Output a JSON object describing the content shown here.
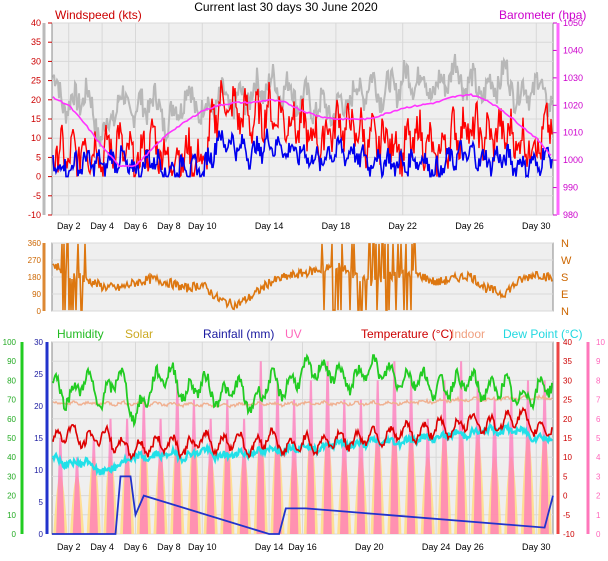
{
  "title": "Current last 30 days 30 June 2020",
  "colors": {
    "plot_bg": "#efefef",
    "grid": "#d8d8d8",
    "wind_avg": "#0000ee",
    "wind_gust": "#ff0000",
    "wind_speed_gray": "#b8b8b8",
    "barometer": "#ff33ff",
    "direction": "#dd7710",
    "humidity": "#22cc22",
    "solar": "#ffdd88",
    "rainfall": "#2233cc",
    "uv": "#ff77bb",
    "temperature": "#dd0000",
    "indoor": "#f0b090",
    "dew_point": "#22e0e8"
  },
  "chart_data": [
    {
      "type": "line",
      "panel": "wind-barometer",
      "labels": {
        "left": "Windspeed (kts)",
        "right": "Barometer (hpa)"
      },
      "x_ticks": [
        "Day 2",
        "Day 4",
        "Day 6",
        "Day 8",
        "Day 10",
        "Day 14",
        "Day 18",
        "Day 22",
        "Day 26",
        "Day 30"
      ],
      "x_tick_days": [
        2,
        4,
        6,
        8,
        10,
        14,
        18,
        22,
        26,
        30
      ],
      "y_left_ticks": [
        -10,
        -5,
        0,
        5,
        10,
        15,
        20,
        25,
        30,
        35,
        40
      ],
      "y_left_range": [
        -10,
        40
      ],
      "y_right_ticks": [
        980,
        990,
        1000,
        1010,
        1020,
        1030,
        1040,
        1050
      ],
      "y_right_range": [
        980,
        1050
      ],
      "x_range_days": [
        1,
        31
      ],
      "series": [
        {
          "key": "barometer",
          "axis": "right",
          "x": [
            1,
            2,
            3,
            4,
            5,
            6,
            7,
            8,
            9,
            10,
            11,
            12,
            13,
            14,
            15,
            16,
            17,
            18,
            19,
            20,
            21,
            22,
            23,
            24,
            25,
            26,
            27,
            28,
            29,
            30,
            31
          ],
          "values": [
            1023,
            1020,
            1013,
            1005,
            998,
            998,
            1004,
            1010,
            1014,
            1018,
            1020,
            1021,
            1021,
            1022,
            1021,
            1018,
            1016,
            1015,
            1015,
            1015,
            1017,
            1019,
            1020,
            1021,
            1023,
            1024,
            1022,
            1018,
            1013,
            1008,
            1001
          ]
        },
        {
          "key": "wind_speed_gray",
          "axis": "left",
          "x": [
            1,
            2,
            3,
            4,
            5,
            6,
            7,
            8,
            9,
            10,
            11,
            12,
            13,
            14,
            15,
            16,
            17,
            18,
            19,
            20,
            21,
            22,
            23,
            24,
            25,
            26,
            27,
            28,
            29,
            30,
            31
          ],
          "values": [
            25,
            18,
            22,
            10,
            20,
            17,
            20,
            14,
            22,
            17,
            20,
            19,
            22,
            24,
            23,
            20,
            18,
            17,
            21,
            24,
            22,
            25,
            26,
            22,
            28,
            24,
            22,
            27,
            21,
            24,
            19
          ]
        },
        {
          "key": "wind_gust",
          "axis": "left",
          "x": [
            1,
            2,
            3,
            4,
            5,
            6,
            7,
            8,
            9,
            10,
            11,
            12,
            13,
            14,
            15,
            16,
            17,
            18,
            19,
            20,
            21,
            22,
            23,
            24,
            25,
            26,
            27,
            28,
            29,
            30,
            31
          ],
          "values": [
            7,
            5,
            8,
            6,
            9,
            3,
            10,
            4,
            6,
            3,
            20,
            17,
            15,
            17,
            15,
            13,
            9,
            14,
            13,
            9,
            10,
            7,
            11,
            5,
            11,
            13,
            10,
            12,
            9,
            8,
            15
          ]
        },
        {
          "key": "wind_avg",
          "axis": "left",
          "x": [
            1,
            2,
            3,
            4,
            5,
            6,
            7,
            8,
            9,
            10,
            11,
            12,
            13,
            14,
            15,
            16,
            17,
            18,
            19,
            20,
            21,
            22,
            23,
            24,
            25,
            26,
            27,
            28,
            29,
            30,
            31
          ],
          "values": [
            3,
            2,
            4,
            3,
            5,
            1,
            5,
            1,
            3,
            1,
            10,
            8,
            6,
            9,
            7,
            6,
            4,
            7,
            6,
            4,
            4,
            3,
            5,
            1,
            5,
            6,
            4,
            5,
            3,
            3,
            7
          ]
        }
      ]
    },
    {
      "type": "line",
      "panel": "wind-direction",
      "y_left_ticks": [
        0,
        90,
        180,
        270,
        360
      ],
      "y_left_range": [
        0,
        360
      ],
      "y_right_labels": [
        "N",
        "E",
        "S",
        "W",
        "N"
      ],
      "x_range_days": [
        1,
        31
      ],
      "series": [
        {
          "key": "direction",
          "x": [
            1,
            2,
            3,
            4,
            5,
            6,
            7,
            8,
            9,
            10,
            11,
            12,
            13,
            14,
            15,
            16,
            17,
            18,
            19,
            20,
            21,
            22,
            23,
            24,
            25,
            26,
            27,
            28,
            29,
            30,
            31
          ],
          "values": [
            250,
            200,
            170,
            130,
            120,
            150,
            170,
            150,
            120,
            140,
            60,
            30,
            80,
            150,
            180,
            200,
            220,
            240,
            200,
            150,
            180,
            200,
            190,
            150,
            170,
            190,
            120,
            90,
            160,
            200,
            170
          ]
        }
      ]
    },
    {
      "type": "line",
      "panel": "weather",
      "labels": {
        "humidity": "Humidity",
        "solar": "Solar",
        "rainfall": "Rainfall (mm)",
        "uv": "UV",
        "temperature": "Temperature (°C)",
        "indoor": "Indoor",
        "dew_point": "Dew Point (°C)"
      },
      "x_ticks": [
        "Day 2",
        "Day 4",
        "Day 6",
        "Day 8",
        "Day 10",
        "Day 14",
        "Day 16",
        "Day 20",
        "Day 24",
        "Day 26",
        "Day 30"
      ],
      "x_tick_days": [
        2,
        4,
        6,
        8,
        10,
        14,
        16,
        20,
        24,
        26,
        30
      ],
      "y_humidity_ticks": [
        0,
        10,
        20,
        30,
        40,
        50,
        60,
        70,
        80,
        90,
        100
      ],
      "y_rain_ticks": [
        0,
        5,
        10,
        15,
        20,
        25,
        30
      ],
      "y_temp_ticks": [
        -10,
        -5,
        0,
        5,
        10,
        15,
        20,
        25,
        30,
        35,
        40
      ],
      "y_uv_ticks": [
        0,
        1,
        2,
        3,
        4,
        5,
        6,
        7,
        8,
        9,
        10
      ],
      "x_range_days": [
        1,
        31
      ],
      "series": [
        {
          "key": "humidity",
          "axis": "humidity",
          "x": [
            1,
            2,
            3,
            4,
            5,
            6,
            7,
            8,
            9,
            10,
            11,
            12,
            13,
            14,
            15,
            16,
            17,
            18,
            19,
            20,
            21,
            22,
            23,
            24,
            25,
            26,
            27,
            28,
            29,
            30,
            31
          ],
          "values": [
            80,
            70,
            82,
            68,
            85,
            60,
            78,
            85,
            72,
            80,
            70,
            78,
            66,
            80,
            75,
            85,
            86,
            84,
            78,
            88,
            84,
            80,
            82,
            75,
            78,
            80,
            74,
            78,
            70,
            74,
            80
          ]
        },
        {
          "key": "indoor",
          "axis": "temp",
          "x": [
            1,
            6,
            11,
            16,
            21,
            26,
            31
          ],
          "values": [
            24,
            24,
            23.5,
            24,
            24,
            25,
            25.5
          ]
        },
        {
          "key": "temperature",
          "axis": "temp",
          "x": [
            1,
            2,
            3,
            4,
            5,
            6,
            7,
            8,
            9,
            10,
            11,
            12,
            13,
            14,
            15,
            16,
            17,
            18,
            19,
            20,
            21,
            22,
            23,
            24,
            25,
            26,
            27,
            28,
            29,
            30,
            31
          ],
          "values": [
            14,
            17,
            14,
            16,
            13,
            12,
            13,
            14,
            12,
            15,
            13,
            15,
            12,
            16,
            12,
            14,
            13,
            15,
            14,
            16,
            15,
            17,
            16,
            18,
            17,
            20,
            18,
            19,
            21,
            17,
            18
          ]
        },
        {
          "key": "dew_point",
          "axis": "temp",
          "x": [
            1,
            2,
            3,
            4,
            5,
            6,
            7,
            8,
            9,
            10,
            11,
            12,
            13,
            14,
            15,
            16,
            17,
            18,
            19,
            20,
            21,
            22,
            23,
            24,
            25,
            26,
            27,
            28,
            29,
            30,
            31
          ],
          "values": [
            10,
            8,
            9,
            6,
            8,
            10,
            10,
            11,
            10,
            12,
            10,
            11,
            11,
            12,
            12,
            13,
            12,
            14,
            13,
            14,
            14,
            14,
            15,
            15,
            16,
            16,
            17,
            17,
            17,
            15,
            15
          ]
        },
        {
          "key": "rainfall",
          "axis": "rain",
          "x": [
            1,
            4.8,
            5.1,
            5.7,
            6.0,
            6.5,
            14.0,
            14.6,
            15.0,
            16.2,
            30.5,
            31
          ],
          "values": [
            0,
            0,
            9,
            9,
            3,
            6,
            0,
            0,
            4,
            4,
            1,
            6
          ]
        },
        {
          "key": "uv",
          "axis": "uv",
          "daily_peak": [
            5,
            4,
            5,
            6,
            6,
            7,
            6,
            8,
            7,
            6,
            7,
            6,
            9,
            8,
            7,
            8,
            9,
            7,
            7,
            8,
            9,
            8,
            6,
            8,
            9,
            8,
            7,
            7,
            8,
            8
          ]
        },
        {
          "key": "solar",
          "axis": "uv",
          "daily_peak": [
            3,
            3,
            4,
            4,
            4,
            5,
            4,
            5,
            5,
            4,
            5,
            4,
            5,
            5,
            4,
            5,
            5,
            4,
            4,
            5,
            5,
            5,
            4,
            5,
            5,
            5,
            4,
            4,
            5,
            5
          ]
        }
      ]
    }
  ]
}
